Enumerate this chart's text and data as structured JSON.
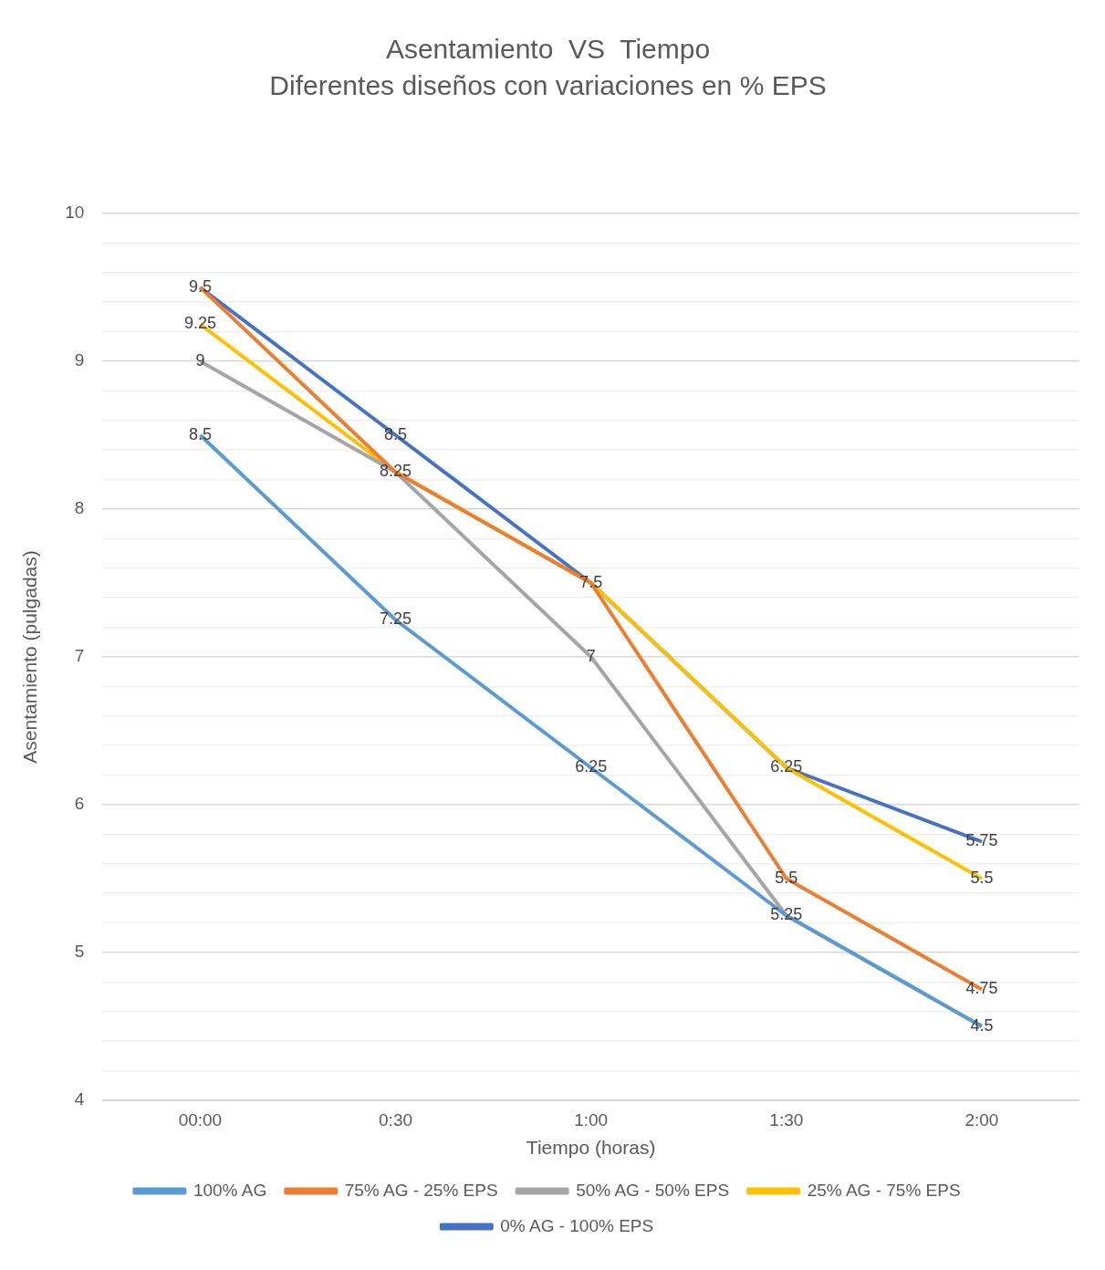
{
  "chart_data": {
    "type": "line",
    "title": "Asentamiento  VS  Tiempo",
    "subtitle": "Diferentes diseños con variaciones en % EPS",
    "xlabel": "Tiempo (horas)",
    "ylabel": "Asentamiento (pulgadas)",
    "categories": [
      "00:00",
      "0:30",
      "1:00",
      "1:30",
      "2:00"
    ],
    "series": [
      {
        "name": "100% AG",
        "color": "#5b9bd5",
        "values": [
          8.5,
          7.25,
          6.25,
          5.25,
          4.5
        ],
        "value_labels": [
          "8.5",
          "7.25",
          "6.25",
          "5.25",
          "4.5"
        ]
      },
      {
        "name": "75% AG - 25% EPS",
        "color": "#ed7d31",
        "values": [
          9.5,
          8.25,
          7.5,
          5.5,
          4.75
        ],
        "value_labels": [
          "9.5",
          "8.25",
          "7.5",
          "5.5",
          "4.75"
        ]
      },
      {
        "name": "50% AG - 50% EPS",
        "color": "#a5a5a5",
        "values": [
          9,
          8.25,
          7,
          5.25,
          4.5
        ],
        "value_labels": [
          "9",
          null,
          "7",
          null,
          null
        ]
      },
      {
        "name": "25% AG - 75% EPS",
        "color": "#ffc000",
        "values": [
          9.25,
          8.25,
          7.5,
          6.25,
          5.5
        ],
        "value_labels": [
          "9.25",
          null,
          null,
          "6.25",
          "5.5"
        ]
      },
      {
        "name": "0% AG - 100% EPS",
        "color": "#4472c4",
        "values": [
          9.5,
          8.5,
          7.5,
          6.25,
          5.75
        ],
        "value_labels": [
          null,
          "8.5",
          null,
          null,
          "5.75"
        ]
      }
    ],
    "ylim": [
      4,
      10
    ],
    "yticks": [
      4,
      {
        "value": 4.2,
        "label": null
      },
      {
        "value": 4.4,
        "label": null
      },
      {
        "value": 4.6,
        "label": null
      },
      {
        "value": 4.8,
        "label": null
      },
      5,
      {
        "value": 5.2,
        "label": null
      },
      {
        "value": 5.4,
        "label": null
      },
      {
        "value": 5.6,
        "label": null
      },
      {
        "value": 5.8,
        "label": null
      },
      6,
      {
        "value": 6.2,
        "label": null
      },
      {
        "value": 6.4,
        "label": null
      },
      {
        "value": 6.6,
        "label": null
      },
      {
        "value": 6.8,
        "label": null
      },
      7,
      {
        "value": 7.2,
        "label": null
      },
      {
        "value": 7.4,
        "label": null
      },
      {
        "value": 7.6,
        "label": null
      },
      {
        "value": 7.8,
        "label": null
      },
      8,
      {
        "value": 8.2,
        "label": null
      },
      {
        "value": 8.4,
        "label": null
      },
      {
        "value": 8.6,
        "label": null
      },
      {
        "value": 8.8,
        "label": null
      },
      9,
      {
        "value": 9.2,
        "label": null
      },
      {
        "value": 9.4,
        "label": null
      },
      {
        "value": 9.6,
        "label": null
      },
      {
        "value": 9.8,
        "label": null
      },
      10
    ],
    "grid": "y",
    "legend": "bottom",
    "marker": "none",
    "line_style": "solid"
  }
}
